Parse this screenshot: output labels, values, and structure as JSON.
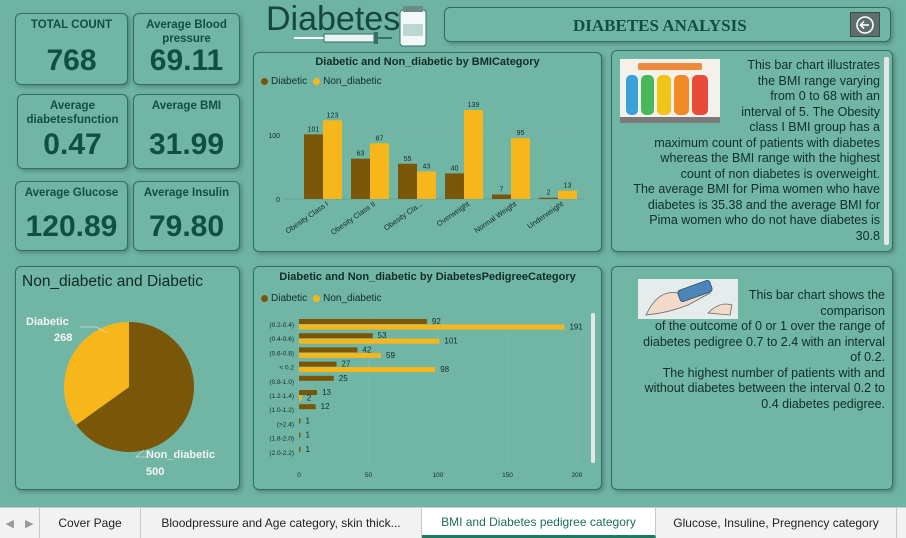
{
  "header": {
    "logo_text": "Diabetes",
    "title": "DIABETES ANALYSIS"
  },
  "kpis": [
    {
      "label": "TOTAL COUNT",
      "value": "768"
    },
    {
      "label": "Average Blood pressure",
      "value": "69.11"
    },
    {
      "label": "Average diabetesfunction",
      "value": "0.47"
    },
    {
      "label": "Average BMI",
      "value": "31.99"
    },
    {
      "label": "Average Glucose",
      "value": "120.89"
    },
    {
      "label": "Average Insulin",
      "value": "79.80"
    }
  ],
  "colors": {
    "diabetic": "#7a5608",
    "non_diabetic": "#f7b71a",
    "text": "#114f45"
  },
  "bmi_chart": {
    "title": "Diabetic and Non_diabetic by BMICategory",
    "legend": [
      "Diabetic",
      "Non_diabetic"
    ]
  },
  "pie_chart": {
    "title": "Non_diabetic and Diabetic",
    "labels": [
      {
        "name": "Diabetic",
        "value": "268"
      },
      {
        "name": "Non_diabetic",
        "value": "500"
      }
    ]
  },
  "dpf_chart": {
    "title": "Diabetic and Non_diabetic by DiabetesPedigreeCategory",
    "legend": [
      "Diabetic",
      "Non_diabetic"
    ]
  },
  "chart_data": [
    {
      "type": "bar",
      "title": "Diabetic and Non_diabetic by BMICategory",
      "categories": [
        "Obesity Class I",
        "Obesity Class II",
        "Obesity Cla...",
        "Overweight",
        "Normal Weight",
        "Underweight"
      ],
      "series": [
        {
          "name": "Diabetic",
          "values": [
            101,
            63,
            55,
            40,
            7,
            2
          ]
        },
        {
          "name": "Non_diabetic",
          "values": [
            123,
            87,
            43,
            139,
            95,
            13
          ]
        }
      ],
      "yticks": [
        0,
        100
      ],
      "ylim": [
        0,
        150
      ],
      "legend": "top-left"
    },
    {
      "type": "pie",
      "title": "Non_diabetic and Diabetic",
      "categories": [
        "Diabetic",
        "Non_diabetic"
      ],
      "values": [
        268,
        500
      ]
    },
    {
      "type": "bar",
      "orientation": "horizontal",
      "title": "Diabetic and Non_diabetic by DiabetesPedigreeCategory",
      "categories": [
        "(0.2-0.4)",
        "(0.4-0.6)",
        "(0.6-0.8)",
        "< 0.2",
        "(0.8-1.0)",
        "(1.2-1.4)",
        "(1.0-1.2)",
        "(>2.4)",
        "(1.8-2.0)",
        "(2.0-2.2)"
      ],
      "series": [
        {
          "name": "Diabetic",
          "values": [
            92,
            53,
            42,
            27,
            25,
            13,
            12,
            1,
            1,
            1
          ]
        },
        {
          "name": "Non_diabetic",
          "values": [
            191,
            101,
            59,
            98,
            null,
            2,
            null,
            null,
            null,
            null
          ]
        }
      ],
      "xticks": [
        0,
        50,
        100,
        150,
        200
      ],
      "xlim": [
        0,
        200
      ],
      "legend": "top-left"
    }
  ],
  "descriptions": {
    "bmi": [
      "This bar chart illustrates",
      "the BMI range varying",
      "from 0 to 68 with an",
      "interval of 5. The Obesity",
      "class I BMI group has a",
      "maximum count of patients with diabetes",
      "whereas the BMI range with the highest",
      "count of non diabetes is overweight.",
      "The average BMI for Pima women who have",
      "diabetes is 35.38 and the average BMI for",
      "Pima women who do not have diabetes is",
      "30.8"
    ],
    "dpf": [
      "This bar chart shows the",
      "comparison",
      "of the outcome of 0 or 1  over the range of",
      "diabetes pedigree 0.7 to 2.4 with an interval",
      "of 0.2.",
      "The highest number of patients with and",
      "without diabetes between the interval 0.2 to",
      "0.4 diabetes pedigree."
    ]
  },
  "tabs": [
    {
      "label": "Cover Page",
      "active": false
    },
    {
      "label": "Bloodpressure and Age category, skin thick...",
      "active": false
    },
    {
      "label": "BMI and Diabetes pedigree category",
      "active": true
    },
    {
      "label": "Glucose, Insuline, Pregnency category",
      "active": false
    }
  ]
}
